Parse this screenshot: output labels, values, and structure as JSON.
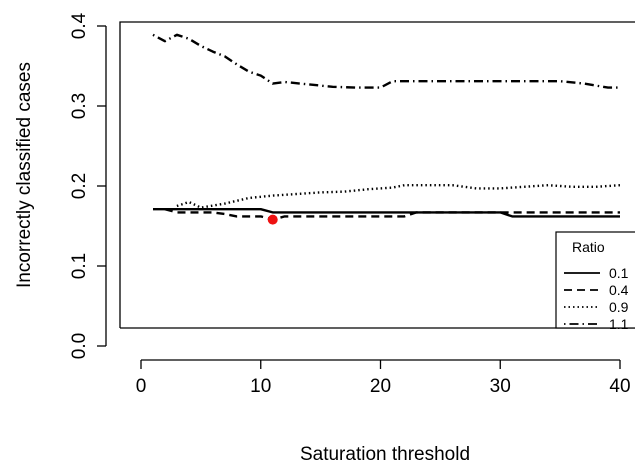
{
  "chart_data": {
    "type": "line",
    "xlabel": "Saturation threshold",
    "ylabel": "Incorrectly classified cases",
    "xlim": [
      0,
      41
    ],
    "ylim": [
      -0.01,
      0.41
    ],
    "x_ticks": [
      "0",
      "10",
      "20",
      "30",
      "40"
    ],
    "y_ticks": [
      "0.0",
      "0.1",
      "0.2",
      "0.3",
      "0.4"
    ],
    "grid": false,
    "legend": {
      "title": "Ratio",
      "placement": "bottom-right",
      "entries": [
        "0.1",
        "0.4",
        "0.9",
        "1.1"
      ]
    },
    "series": [
      {
        "name": "0.1",
        "dash": "solid",
        "x": [
          1,
          2,
          5,
          10,
          11,
          15,
          20,
          25,
          30,
          31,
          35,
          40
        ],
        "y": [
          0.171,
          0.171,
          0.171,
          0.171,
          0.167,
          0.167,
          0.167,
          0.167,
          0.167,
          0.162,
          0.162,
          0.162
        ]
      },
      {
        "name": "0.4",
        "dash": "dashed",
        "x": [
          2,
          3,
          6,
          7,
          8,
          9,
          10,
          11,
          12,
          15,
          20,
          22,
          23,
          30,
          31,
          35,
          40
        ],
        "y": [
          0.171,
          0.167,
          0.167,
          0.165,
          0.162,
          0.162,
          0.162,
          0.158,
          0.162,
          0.162,
          0.162,
          0.162,
          0.167,
          0.167,
          0.167,
          0.167,
          0.167
        ]
      },
      {
        "name": "0.9",
        "dash": "dotted",
        "x": [
          3,
          4,
          5,
          7,
          9,
          11,
          13,
          15,
          17,
          19,
          21,
          22,
          24,
          26,
          28,
          30,
          32,
          34,
          36,
          38,
          40
        ],
        "y": [
          0.175,
          0.18,
          0.173,
          0.178,
          0.185,
          0.188,
          0.19,
          0.192,
          0.193,
          0.196,
          0.198,
          0.201,
          0.201,
          0.201,
          0.197,
          0.197,
          0.199,
          0.201,
          0.199,
          0.199,
          0.201
        ]
      },
      {
        "name": "1.1",
        "dash": "dotdash",
        "x": [
          1,
          2,
          3,
          4,
          5,
          6,
          7,
          8,
          9,
          10,
          11,
          12,
          14,
          16,
          18,
          20,
          21,
          23,
          25,
          27,
          29,
          31,
          33,
          35,
          37,
          39,
          40
        ],
        "y": [
          0.389,
          0.381,
          0.389,
          0.384,
          0.375,
          0.368,
          0.362,
          0.352,
          0.343,
          0.338,
          0.328,
          0.33,
          0.327,
          0.324,
          0.323,
          0.323,
          0.331,
          0.331,
          0.331,
          0.331,
          0.331,
          0.331,
          0.331,
          0.331,
          0.328,
          0.323,
          0.323
        ]
      }
    ],
    "highlight_point": {
      "x": 11,
      "y": 0.158,
      "color": "#ee1111"
    }
  }
}
